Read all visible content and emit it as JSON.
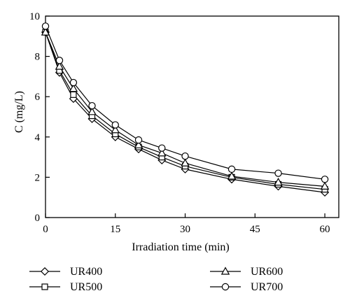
{
  "chart_data": {
    "type": "line",
    "title": "",
    "xlabel": "Irradiation time (min)",
    "ylabel": "C (mg/L)",
    "xlim": [
      0,
      63
    ],
    "ylim": [
      0,
      10
    ],
    "xticks": [
      0,
      15,
      30,
      45,
      60
    ],
    "yticks": [
      0,
      2,
      4,
      6,
      8,
      10
    ],
    "grid": false,
    "legend_position": "bottom",
    "x": [
      0,
      3,
      6,
      10,
      15,
      20,
      25,
      30,
      40,
      50,
      60
    ],
    "series": [
      {
        "name": "UR400",
        "marker": "diamond",
        "values": [
          9.2,
          7.2,
          5.9,
          4.9,
          4.0,
          3.4,
          2.85,
          2.4,
          1.9,
          1.55,
          1.25
        ]
      },
      {
        "name": "UR500",
        "marker": "square",
        "values": [
          9.2,
          7.3,
          6.1,
          5.05,
          4.15,
          3.5,
          3.0,
          2.55,
          2.0,
          1.65,
          1.4
        ]
      },
      {
        "name": "UR600",
        "marker": "triangle",
        "values": [
          9.2,
          7.5,
          6.4,
          5.25,
          4.35,
          3.6,
          3.2,
          2.7,
          2.05,
          1.75,
          1.55
        ]
      },
      {
        "name": "UR700",
        "marker": "circle",
        "values": [
          9.5,
          7.8,
          6.7,
          5.55,
          4.6,
          3.85,
          3.45,
          3.05,
          2.4,
          2.2,
          1.9
        ]
      }
    ]
  }
}
